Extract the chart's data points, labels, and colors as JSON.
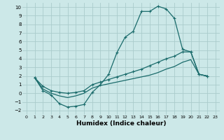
{
  "xlabel": "Humidex (Indice chaleur)",
  "background_color": "#cce8e8",
  "grid_color": "#aacccc",
  "line_color": "#1a6b6b",
  "xlim": [
    -0.5,
    23.5
  ],
  "ylim": [
    -2.5,
    10.5
  ],
  "xticks": [
    0,
    1,
    2,
    3,
    4,
    5,
    6,
    7,
    8,
    9,
    10,
    11,
    12,
    13,
    14,
    15,
    16,
    17,
    18,
    19,
    20,
    21,
    22,
    23
  ],
  "yticks": [
    -2,
    -1,
    0,
    1,
    2,
    3,
    4,
    5,
    6,
    7,
    8,
    9,
    10
  ],
  "curve1_x": [
    1,
    2,
    3,
    4,
    5,
    6,
    7,
    8,
    9,
    10,
    11,
    12,
    13,
    14,
    15,
    16,
    17,
    18,
    19,
    20,
    21,
    22
  ],
  "curve1_y": [
    1.8,
    0.3,
    -0.2,
    -1.2,
    -1.6,
    -1.5,
    -1.3,
    0.1,
    1.0,
    2.2,
    4.7,
    6.5,
    7.2,
    9.5,
    9.5,
    10.1,
    9.8,
    8.7,
    5.1,
    4.8,
    2.2,
    2.0
  ],
  "curve2_x": [
    1,
    2,
    3,
    4,
    5,
    6,
    7,
    8,
    9,
    10,
    11,
    12,
    13,
    14,
    15,
    16,
    17,
    18,
    19,
    20,
    21,
    22
  ],
  "curve2_y": [
    1.8,
    0.8,
    0.3,
    0.1,
    0.0,
    0.1,
    0.3,
    1.0,
    1.3,
    1.6,
    1.9,
    2.2,
    2.5,
    2.8,
    3.2,
    3.6,
    4.0,
    4.3,
    4.8,
    4.8,
    2.2,
    2.0
  ],
  "curve3_x": [
    1,
    2,
    3,
    4,
    5,
    6,
    7,
    8,
    9,
    10,
    11,
    12,
    13,
    14,
    15,
    16,
    17,
    18,
    19,
    20,
    21,
    22
  ],
  "curve3_y": [
    1.8,
    0.5,
    0.0,
    -0.3,
    -0.5,
    -0.3,
    0.0,
    0.6,
    0.9,
    1.1,
    1.3,
    1.5,
    1.7,
    1.9,
    2.1,
    2.4,
    2.8,
    3.1,
    3.6,
    3.9,
    2.2,
    2.0
  ]
}
